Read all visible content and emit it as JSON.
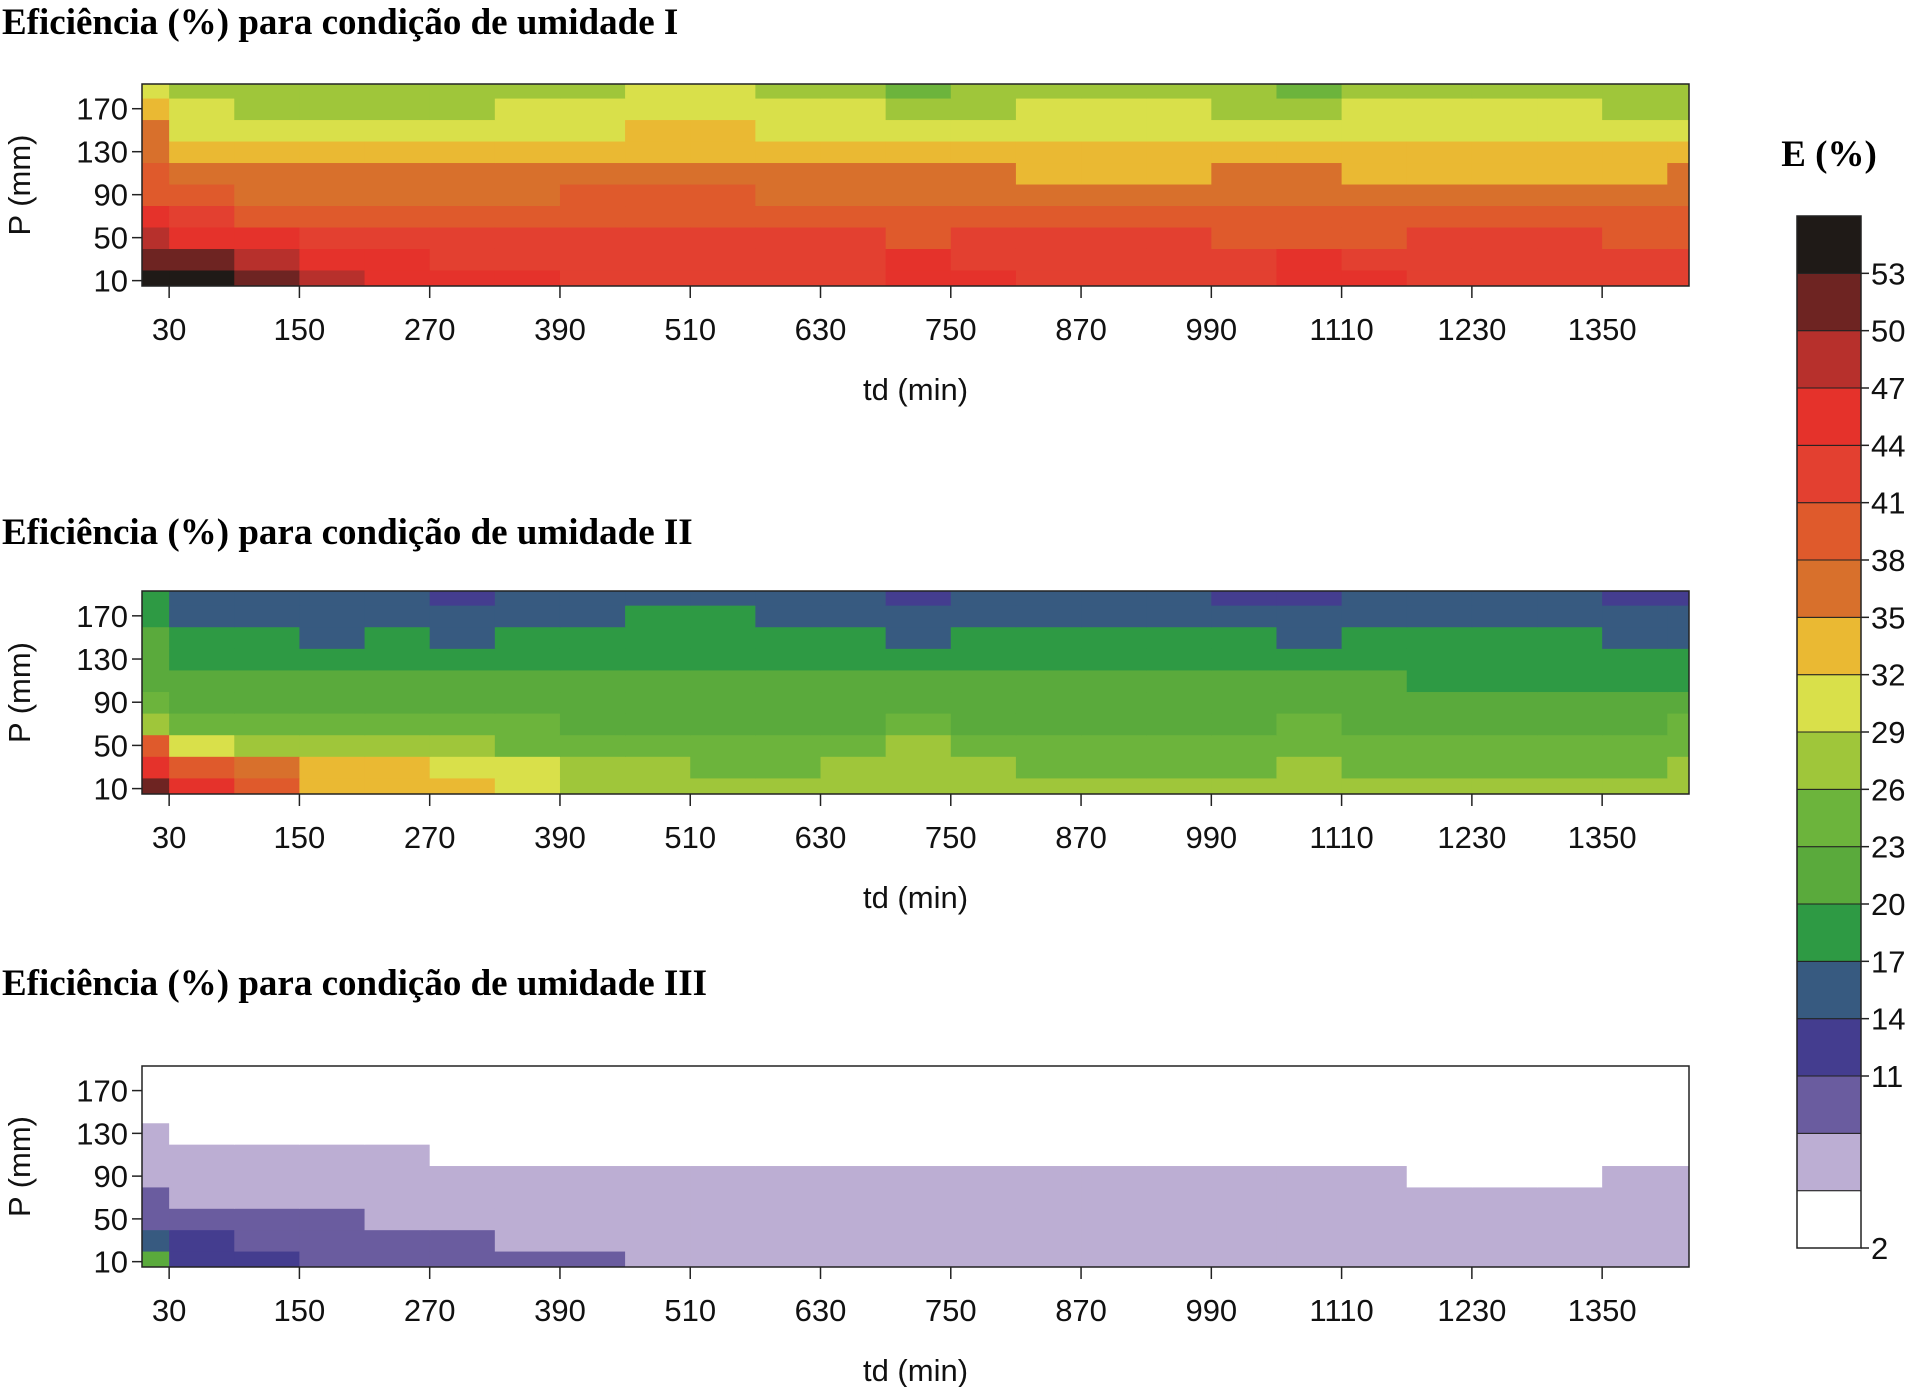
{
  "chart_data": [
    {
      "type": "contour",
      "title": "Eficiência (%) para condição de umidade I",
      "xlabel": "td (min)",
      "ylabel": "P (mm)",
      "xlim": [
        5,
        1430
      ],
      "ylim": [
        5,
        193
      ],
      "xticks": [
        30,
        150,
        270,
        390,
        510,
        630,
        750,
        870,
        990,
        1110,
        1230,
        1350
      ],
      "yticks": [
        10,
        50,
        90,
        130,
        170
      ],
      "x": [
        0,
        60,
        120,
        180,
        240,
        300,
        360,
        420,
        480,
        540,
        600,
        660,
        720,
        780,
        840,
        900,
        960,
        1020,
        1080,
        1140,
        1200,
        1260,
        1320,
        1380,
        1440
      ],
      "y": [
        10,
        30,
        50,
        70,
        90,
        110,
        130,
        150,
        170,
        190
      ],
      "z": [
        [
          55,
          54,
          51,
          48,
          46,
          44.5,
          44,
          43,
          43,
          43,
          43,
          43.5,
          45.5,
          44,
          43,
          43,
          43,
          43.5,
          45,
          44,
          43,
          43,
          42.5,
          42,
          42
        ],
        [
          52,
          50,
          48.5,
          46,
          44,
          43,
          42.5,
          42,
          42.5,
          42.5,
          42,
          42,
          44,
          43,
          42.5,
          42.5,
          42,
          42,
          44.5,
          43,
          42,
          42.5,
          42,
          41.5,
          41
        ],
        [
          49,
          46,
          44,
          42.5,
          42,
          41.5,
          41,
          41,
          41.5,
          41.5,
          41,
          41,
          40.5,
          41,
          41.5,
          41.5,
          41,
          40.5,
          39.5,
          40.5,
          41,
          41.5,
          41,
          40.5,
          40
        ],
        [
          44,
          41,
          40,
          40,
          40,
          38.5,
          39,
          39.5,
          40,
          40,
          39.5,
          39,
          38,
          39,
          39.5,
          39.5,
          39.5,
          39,
          38,
          39,
          39.5,
          39.5,
          39,
          38.5,
          38
        ],
        [
          40,
          38,
          37.5,
          37,
          37,
          37,
          37.5,
          38,
          38,
          38,
          37.5,
          37.5,
          37,
          37,
          37,
          37,
          37.5,
          37.5,
          37,
          37.5,
          37.5,
          37.5,
          37.5,
          37.5,
          37
        ],
        [
          38.5,
          36,
          35,
          35,
          35,
          35,
          35,
          35,
          35,
          35.5,
          35.5,
          35.5,
          35,
          35,
          34.5,
          34.5,
          34.5,
          35,
          35,
          34.5,
          34,
          34,
          34,
          34.5,
          35
        ],
        [
          37,
          33,
          32,
          32.5,
          33,
          32,
          33,
          33.5,
          33.5,
          33.5,
          33,
          33,
          32.5,
          33,
          33,
          33,
          33,
          32.5,
          32.5,
          33,
          33,
          33,
          33,
          32.5,
          32.5
        ],
        [
          35,
          31,
          30,
          30,
          30.5,
          29.5,
          31,
          31.5,
          32,
          32,
          31.5,
          31,
          30,
          31,
          31.5,
          31.5,
          31,
          30.5,
          30,
          31,
          31.5,
          31.5,
          31,
          30.5,
          30
        ],
        [
          33,
          30,
          28,
          27.5,
          28,
          27,
          29,
          30,
          30.5,
          30.5,
          30,
          29,
          27.5,
          28.5,
          29.5,
          29.5,
          29,
          28.5,
          27.5,
          29,
          29.5,
          29.5,
          29,
          28.5,
          28
        ],
        [
          31,
          28,
          27,
          27,
          27,
          26,
          27.5,
          28,
          29,
          29,
          28,
          27,
          25,
          27,
          27.5,
          27.5,
          27,
          26.5,
          25,
          26.5,
          27,
          27,
          27,
          26,
          26
        ]
      ]
    },
    {
      "type": "contour",
      "title": "Eficiência (%) para condição de umidade II",
      "xlabel": "td (min)",
      "ylabel": "P (mm)",
      "xlim": [
        5,
        1430
      ],
      "ylim": [
        5,
        193
      ],
      "xticks": [
        30,
        150,
        270,
        390,
        510,
        630,
        750,
        870,
        990,
        1110,
        1230,
        1350
      ],
      "yticks": [
        10,
        50,
        90,
        130,
        170
      ],
      "x": [
        0,
        60,
        120,
        180,
        240,
        300,
        360,
        420,
        480,
        540,
        600,
        660,
        720,
        780,
        840,
        900,
        960,
        1020,
        1080,
        1140,
        1200,
        1260,
        1320,
        1380,
        1440
      ],
      "y": [
        10,
        30,
        50,
        70,
        90,
        110,
        130,
        150,
        170,
        190
      ],
      "z": [
        [
          50,
          44,
          40,
          34,
          33,
          33,
          30,
          27.5,
          27,
          26.5,
          26.5,
          27,
          27.5,
          27,
          26.5,
          26,
          26,
          26.5,
          27,
          26.5,
          26,
          26,
          26,
          26.5,
          26.5
        ],
        [
          45,
          40,
          36,
          33,
          32,
          31.5,
          29,
          27,
          26,
          25.5,
          25.5,
          26,
          27,
          26,
          25,
          24.5,
          24.5,
          25,
          26.5,
          25.5,
          24.5,
          24.5,
          24.5,
          25,
          26
        ],
        [
          38,
          31,
          28,
          27,
          27,
          26.5,
          25,
          24,
          23.5,
          23.5,
          23.5,
          24,
          26,
          24.5,
          23.5,
          23,
          23,
          23.5,
          25,
          24,
          23,
          23,
          23,
          24,
          25
        ],
        [
          28,
          25,
          23.5,
          23,
          23,
          23,
          23,
          22.5,
          22.5,
          22.5,
          22.5,
          22.5,
          23.5,
          22.5,
          22,
          22,
          22,
          22.5,
          23.5,
          22.5,
          22,
          21.5,
          21.5,
          22,
          23
        ],
        [
          24,
          22.5,
          21.5,
          21.5,
          21.5,
          21.5,
          21.5,
          21.5,
          21.5,
          21.5,
          21.5,
          21.5,
          21.5,
          21.5,
          21.5,
          21.5,
          21.5,
          21.5,
          22,
          21.5,
          21,
          21,
          21,
          21,
          21.5
        ],
        [
          22,
          20.5,
          20,
          20,
          20,
          20,
          20.5,
          20.5,
          20.5,
          20.5,
          20.5,
          20.5,
          20.5,
          20.5,
          20,
          20,
          20,
          20.5,
          20.5,
          20,
          19.5,
          19.5,
          19.5,
          19.5,
          19.5
        ],
        [
          21,
          19.5,
          18.5,
          18.5,
          18.5,
          18,
          18.5,
          19,
          19.5,
          19.5,
          19,
          19,
          18.5,
          19,
          19.5,
          19.5,
          19,
          19,
          18.5,
          18.5,
          18.5,
          18.5,
          18.5,
          18.5,
          18
        ],
        [
          20,
          18,
          17,
          16.5,
          17,
          16,
          17,
          18,
          18.5,
          18.5,
          18,
          17.5,
          16.5,
          17,
          17.5,
          17.5,
          17.5,
          17,
          16.5,
          17,
          17.5,
          17.5,
          17,
          16.5,
          16.5
        ],
        [
          19,
          16,
          15,
          15,
          15,
          14,
          15.5,
          16.5,
          17,
          17,
          16.5,
          15.5,
          14,
          15.5,
          16,
          16,
          15.5,
          15,
          14,
          15.5,
          16,
          16,
          15.5,
          15,
          14.5
        ],
        [
          18,
          15,
          14,
          14,
          14,
          12.5,
          14,
          14.5,
          15,
          15,
          14.5,
          14,
          12.5,
          14,
          14.5,
          14.5,
          14,
          13.5,
          12.5,
          14,
          14.5,
          14.5,
          14,
          13,
          12.5
        ]
      ]
    },
    {
      "type": "contour",
      "title": "Eficiência (%) para condição de umidade III",
      "xlabel": "td (min)",
      "ylabel": "P (mm)",
      "xlim": [
        5,
        1430
      ],
      "ylim": [
        5,
        193
      ],
      "xticks": [
        30,
        150,
        270,
        390,
        510,
        630,
        750,
        870,
        990,
        1110,
        1230,
        1350
      ],
      "yticks": [
        10,
        50,
        90,
        130,
        170
      ],
      "x": [
        0,
        60,
        120,
        180,
        240,
        300,
        360,
        420,
        480,
        540,
        600,
        660,
        720,
        780,
        840,
        900,
        960,
        1020,
        1080,
        1140,
        1200,
        1260,
        1320,
        1380,
        1440
      ],
      "y": [
        10,
        30,
        50,
        70,
        90,
        110,
        130,
        150,
        170,
        190
      ],
      "z": [
        [
          20,
          13,
          11.5,
          10,
          9.5,
          9,
          8.5,
          8,
          7.5,
          7,
          7,
          7,
          7,
          7,
          7,
          7,
          7,
          7,
          7,
          7,
          7,
          7,
          7,
          7,
          7
        ],
        [
          14,
          11.5,
          10,
          9,
          8.8,
          8.5,
          7.8,
          7.4,
          7,
          6.8,
          6.8,
          6.8,
          6.7,
          6.7,
          6.7,
          6.7,
          6.7,
          6.7,
          6.7,
          6.7,
          6.7,
          6.7,
          6.7,
          6.7,
          6.7
        ],
        [
          10.5,
          8.5,
          8.5,
          8,
          7.8,
          7.7,
          7,
          6.8,
          6.6,
          6.6,
          6.5,
          6.5,
          6.5,
          6.5,
          6.5,
          6.5,
          6.5,
          6.5,
          6.5,
          6.5,
          6.5,
          6.5,
          6.5,
          6.5,
          6.5
        ],
        [
          9,
          7,
          6.5,
          6.5,
          6.5,
          6.5,
          6.3,
          6.3,
          6.2,
          6.2,
          6.2,
          6.1,
          6,
          6,
          6,
          6,
          6,
          6,
          6,
          6,
          5.8,
          5.8,
          5.8,
          5.9,
          6
        ],
        [
          7.5,
          6,
          5.5,
          5.8,
          5.8,
          5.4,
          5.5,
          5.6,
          5.6,
          5.6,
          5.5,
          5.4,
          5.3,
          5.2,
          5.1,
          5.0,
          5.0,
          5.1,
          5.1,
          5.0,
          4.9,
          4.8,
          4.8,
          5.0,
          5.1
        ],
        [
          6.5,
          5,
          5,
          5.2,
          5.2,
          4.8,
          4.8,
          4.9,
          4.9,
          4.9,
          4.9,
          4.8,
          4.7,
          4.7,
          4.6,
          4.6,
          4.6,
          4.6,
          4.6,
          4.6,
          4.5,
          4.4,
          4.4,
          4.5,
          4.6
        ],
        [
          5.5,
          4,
          4,
          4,
          4.5,
          4,
          4.5,
          4.5,
          4.5,
          4.5,
          4.5,
          4.5,
          4,
          4,
          4,
          4,
          4,
          4,
          4,
          4,
          4,
          3.5,
          3.5,
          3.5,
          3.5
        ],
        [
          4.5,
          3.5,
          3,
          3,
          3,
          3,
          3,
          3,
          3,
          3,
          3,
          3,
          3,
          3,
          3,
          3,
          3,
          3,
          3,
          3,
          3,
          3,
          3,
          3,
          3
        ],
        [
          3.5,
          3,
          3,
          3,
          3,
          3,
          3,
          3,
          3,
          3,
          3,
          3,
          3,
          3,
          3,
          3,
          3,
          3,
          3,
          3,
          3,
          3,
          3,
          3,
          3
        ],
        [
          3.5,
          3,
          3,
          3,
          3,
          3,
          3,
          3,
          3,
          3,
          3,
          3,
          3,
          3,
          3,
          3,
          3,
          3,
          3,
          3,
          3,
          3,
          3,
          3,
          3
        ]
      ]
    }
  ],
  "colorbar": {
    "title": "E (%)",
    "levels": [
      2,
      5,
      8,
      11,
      14,
      17,
      20,
      23,
      26,
      29,
      32,
      35,
      38,
      41,
      44,
      47,
      50,
      53,
      56
    ],
    "colors": [
      "#ffffff",
      "#bcaed3",
      "#6a5c9f",
      "#443d8f",
      "#375a80",
      "#2e9a44",
      "#5aaa3c",
      "#6cb43c",
      "#9fc63a",
      "#d9e04a",
      "#eab933",
      "#d8702c",
      "#df5a2c",
      "#e34030",
      "#e5322b",
      "#b7302c",
      "#6e2422",
      "#1f1a17"
    ],
    "ticks": [
      2,
      11,
      14,
      17,
      20,
      23,
      26,
      29,
      32,
      35,
      38,
      41,
      44,
      47,
      50,
      53
    ]
  }
}
